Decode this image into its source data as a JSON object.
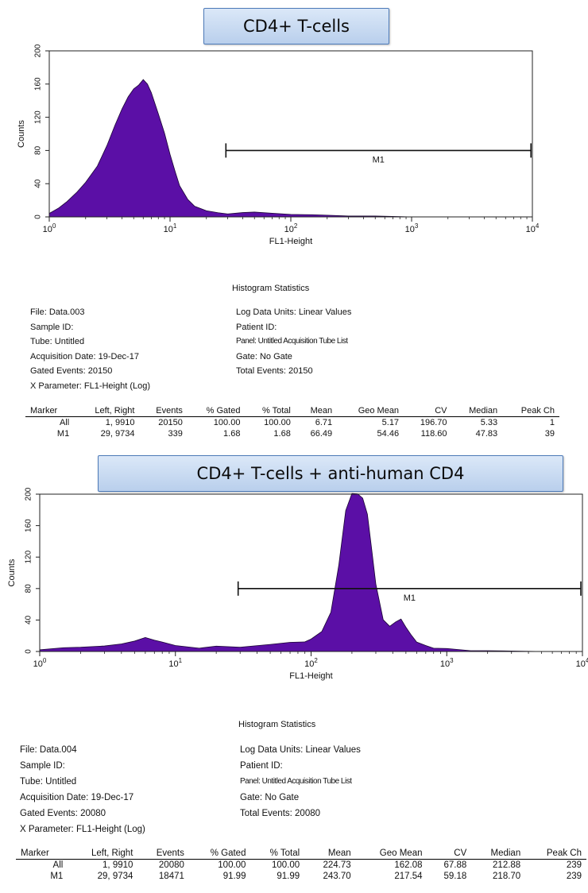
{
  "colors": {
    "fill": "#5b0fa6",
    "stroke": "#1a0533",
    "banner_border": "#4d7ab8"
  },
  "panels": [
    {
      "banner": "CD4+ T-cells",
      "stats_title": "Histogram Statistics",
      "meta_left": [
        "File: Data.003",
        "Sample ID:",
        "Tube: Untitled",
        "Acquisition Date: 19-Dec-17",
        "Gated Events: 20150",
        "X Parameter: FL1-Height (Log)"
      ],
      "meta_right": [
        "Log Data Units: Linear Values",
        "Patient ID:",
        "Panel: Untitled Acquisition Tube List",
        "Gate: No Gate",
        "Total Events: 20150"
      ],
      "table_headers": [
        "Marker",
        "Left, Right",
        "Events",
        "% Gated",
        "% Total",
        "Mean",
        "Geo Mean",
        "CV",
        "Median",
        "Peak Ch"
      ],
      "table_rows": [
        [
          "All",
          "1, 9910",
          "20150",
          "100.00",
          "100.00",
          "6.71",
          "5.17",
          "196.70",
          "5.33",
          "1"
        ],
        [
          "M1",
          "29, 9734",
          "339",
          "1.68",
          "1.68",
          "66.49",
          "54.46",
          "118.60",
          "47.83",
          "39"
        ]
      ]
    },
    {
      "banner": "CD4+ T-cells + anti-human CD4",
      "stats_title": "Histogram Statistics",
      "meta_left": [
        "File: Data.004",
        "Sample ID:",
        "Tube: Untitled",
        "Acquisition Date: 19-Dec-17",
        "Gated Events: 20080",
        "X Parameter: FL1-Height (Log)"
      ],
      "meta_right": [
        "Log Data Units: Linear Values",
        "Patient ID:",
        "Panel: Untitled Acquisition Tube List",
        "Gate: No Gate",
        "Total Events: 20080"
      ],
      "table_headers": [
        "Marker",
        "Left, Right",
        "Events",
        "% Gated",
        "% Total",
        "Mean",
        "Geo Mean",
        "CV",
        "Median",
        "Peak Ch"
      ],
      "table_rows": [
        [
          "All",
          "1, 9910",
          "20080",
          "100.00",
          "100.00",
          "224.73",
          "162.08",
          "67.88",
          "212.88",
          "239"
        ],
        [
          "M1",
          "29, 9734",
          "18471",
          "91.99",
          "91.99",
          "243.70",
          "217.54",
          "59.18",
          "218.70",
          "239"
        ]
      ]
    }
  ],
  "chart_data": [
    {
      "type": "area",
      "title": "CD4+ T-cells",
      "xlabel": "FL1-Height",
      "ylabel": "Counts",
      "xscale": "log",
      "xlim": [
        1,
        10000
      ],
      "ylim": [
        0,
        200
      ],
      "x_ticks": [
        "10^0",
        "10^1",
        "10^2",
        "10^3",
        "10^4"
      ],
      "y_ticks": [
        0,
        40,
        80,
        120,
        160,
        200
      ],
      "series": [
        {
          "x": [
            1,
            1.2,
            1.4,
            1.7,
            2,
            2.5,
            3,
            3.5,
            4,
            4.5,
            5,
            5.5,
            6,
            6.5,
            7,
            8,
            9,
            10,
            11,
            12,
            14,
            16,
            20,
            25,
            30,
            40,
            50,
            70,
            100,
            150,
            200,
            300,
            500,
            1000,
            2000,
            10000
          ],
          "y": [
            5,
            10,
            18,
            30,
            42,
            62,
            85,
            110,
            130,
            145,
            155,
            158,
            165,
            160,
            150,
            125,
            100,
            75,
            55,
            38,
            22,
            12,
            7,
            5,
            4,
            6,
            5,
            4,
            3,
            3,
            2,
            1,
            1,
            0,
            0,
            0
          ]
        }
      ],
      "markers": [
        {
          "label": "M1",
          "left": 29,
          "right": 9734,
          "y": 80
        }
      ]
    },
    {
      "type": "area",
      "title": "CD4+ T-cells + anti-human CD4",
      "xlabel": "FL1-Height",
      "ylabel": "Counts",
      "xscale": "log",
      "xlim": [
        1,
        10000
      ],
      "ylim": [
        0,
        200
      ],
      "x_ticks": [
        "10^0",
        "10^1",
        "10^2",
        "10^3",
        "10^4"
      ],
      "y_ticks": [
        0,
        40,
        80,
        120,
        160,
        200
      ],
      "series": [
        {
          "x": [
            1,
            1.5,
            2,
            3,
            4,
            5,
            6,
            7,
            8,
            10,
            15,
            20,
            30,
            50,
            70,
            90,
            100,
            120,
            140,
            160,
            180,
            200,
            220,
            240,
            260,
            280,
            300,
            340,
            380,
            420,
            460,
            500,
            550,
            600,
            700,
            800,
            1000,
            1500,
            2000,
            5000,
            10000
          ],
          "y": [
            3,
            4,
            5,
            7,
            10,
            14,
            17,
            14,
            12,
            8,
            5,
            6,
            5,
            9,
            12,
            13,
            15,
            25,
            50,
            110,
            180,
            200,
            200,
            195,
            175,
            130,
            85,
            40,
            32,
            38,
            42,
            30,
            20,
            12,
            8,
            5,
            3,
            1,
            1,
            0,
            0
          ]
        }
      ],
      "markers": [
        {
          "label": "M1",
          "left": 29,
          "right": 9734,
          "y": 80
        }
      ]
    }
  ]
}
